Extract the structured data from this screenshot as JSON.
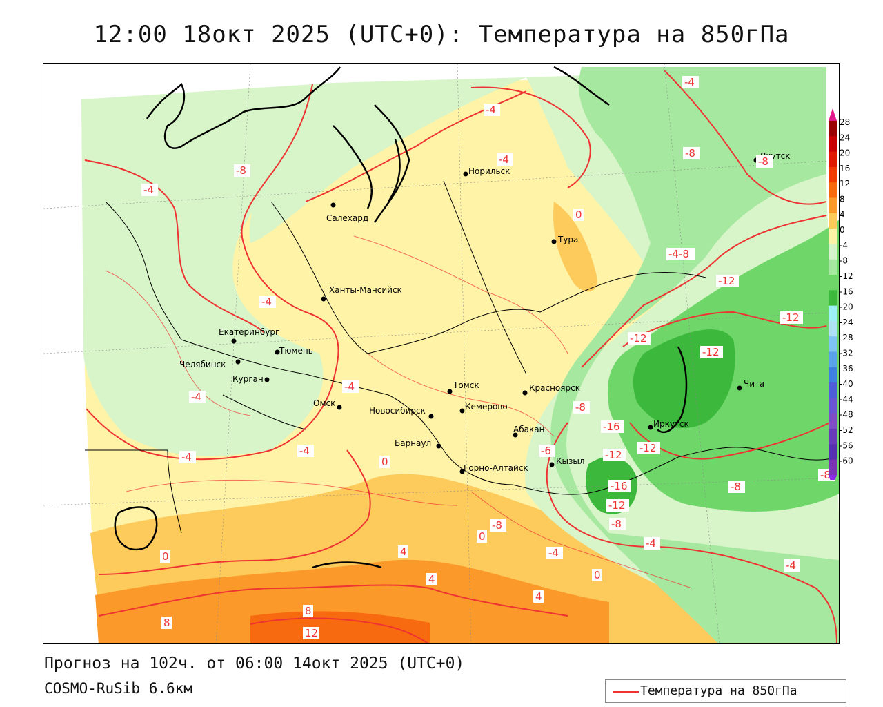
{
  "title": "12:00 18окт 2025 (UTC+0): Температура на 850гПа",
  "footer": {
    "forecast": "Прогноз на 102ч. от 06:00 14окт 2025 (UTC+0)",
    "model": "COSMO-RuSib 6.6км"
  },
  "legend": {
    "label": "Температура на 850гПа",
    "color": "#ee3333"
  },
  "colorbar": {
    "labels": [
      "28",
      "24",
      "20",
      "16",
      "12",
      "8",
      "4",
      "0",
      "-4",
      "-8",
      "-12",
      "-16",
      "-20",
      "-24",
      "-28",
      "-32",
      "-36",
      "-40",
      "-44",
      "-48",
      "-52",
      "-56",
      "-60"
    ],
    "colors": [
      "#9b0000",
      "#c80000",
      "#e01a00",
      "#f03c00",
      "#f86a10",
      "#fb9a2a",
      "#fdca5c",
      "#fff3a8",
      "#d7f5c8",
      "#a7e8a0",
      "#6fd66a",
      "#3cb93c",
      "#9cf0f6",
      "#aee0f6",
      "#7fc3f0",
      "#5aa2ea",
      "#3f7fe0",
      "#4d5ed8",
      "#6a56d2",
      "#7e4ec8",
      "#6a3bbd",
      "#5630b0",
      "#7a34b8"
    ],
    "top_arrow_color": "#e0188a",
    "bottom_arrow_color": "#8a2be2"
  },
  "cities": [
    {
      "name": "Салехард"
    },
    {
      "name": "Норильск"
    },
    {
      "name": "Тура"
    },
    {
      "name": "Якутск"
    },
    {
      "name": "Ханты-Мансийск"
    },
    {
      "name": "Екатеринбург"
    },
    {
      "name": "Тюмень"
    },
    {
      "name": "Челябинск"
    },
    {
      "name": "Курган"
    },
    {
      "name": "Омск"
    },
    {
      "name": "Новосибирск"
    },
    {
      "name": "Томск"
    },
    {
      "name": "Кемерово"
    },
    {
      "name": "Красноярск"
    },
    {
      "name": "Абакан"
    },
    {
      "name": "Барнаул"
    },
    {
      "name": "Горно-Алтайск"
    },
    {
      "name": "Кызыл"
    },
    {
      "name": "Иркутск"
    },
    {
      "name": "Чита"
    }
  ],
  "isotherm_labels": [
    "-4",
    "-8",
    "-4",
    "-4",
    "-4",
    "-8",
    "-8",
    "0",
    "-4",
    "-4-8",
    "-12",
    "-12",
    "-12",
    "-12",
    "-4",
    "-4",
    "-4",
    "0",
    "-4",
    "-8",
    "-16",
    "-12",
    "-6",
    "-12",
    "-16",
    "-12",
    "-8",
    "-8",
    "-8",
    "-4",
    "0",
    "-4",
    "0",
    "4",
    "4",
    "4",
    "8",
    "8",
    "12",
    "-4",
    "0",
    "-8"
  ]
}
